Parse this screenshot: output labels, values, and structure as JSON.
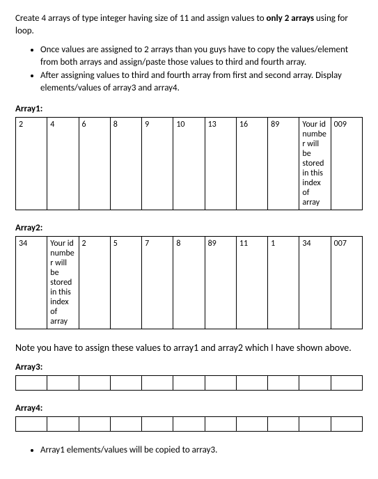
{
  "intro_prefix": "Create 4 arrays of type integer having size of 11 and assign values to ",
  "intro_bold": "only 2 arrays",
  "intro_suffix": " using for loop.",
  "bullets_top": [
    "Once values are assigned to 2 arrays than you guys have to copy the values/element from both arrays and assign/paste those values to third and fourth array.",
    "After assigning values to third and fourth array from first and second array. Display elements/values of array3 and array4."
  ],
  "array1": {
    "label": "Array1:",
    "cells": [
      "2",
      "4",
      "6",
      "8",
      "9",
      "10",
      "13",
      "16",
      "89",
      "Your id number will be stored in this index of array",
      "009"
    ]
  },
  "array2": {
    "label": "Array2:",
    "cells": [
      "34",
      "Your id number will be stored in this index of array",
      "2",
      "5",
      "7",
      "8",
      "89",
      "11",
      "1",
      "34",
      "007"
    ]
  },
  "note": "Note you have to assign these values to array1 and array2 which I have shown above.",
  "array3": {
    "label": "Array3:",
    "cells": [
      "",
      "",
      "",
      "",
      "",
      "",
      "",
      "",
      "",
      "",
      ""
    ]
  },
  "array4": {
    "label": "Array4:",
    "cells": [
      "",
      "",
      "",
      "",
      "",
      "",
      "",
      "",
      "",
      "",
      ""
    ]
  },
  "bullets_bottom": [
    "Array1 elements/values will be copied to array3."
  ]
}
